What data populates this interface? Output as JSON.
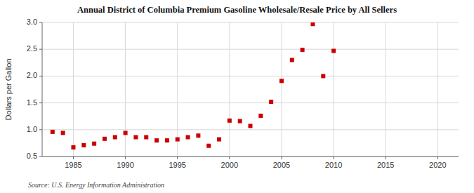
{
  "chart_data": {
    "type": "scatter",
    "title": "Annual District of Columbia Premium Gasoline Wholesale/Resale Price by All Sellers",
    "y_label": "Dollars per Gallon",
    "annotations": [
      "Source: U.S. Energy Information Administration"
    ],
    "x": [
      1983,
      1984,
      1985,
      1986,
      1987,
      1988,
      1989,
      1990,
      1991,
      1992,
      1993,
      1994,
      1995,
      1996,
      1997,
      1998,
      1999,
      2000,
      2001,
      2002,
      2003,
      2004,
      2005,
      2006,
      2007,
      2008,
      2009,
      2010
    ],
    "values": [
      0.96,
      0.94,
      0.67,
      0.71,
      0.74,
      0.83,
      0.86,
      0.94,
      0.86,
      0.86,
      0.8,
      0.8,
      0.82,
      0.86,
      0.89,
      0.7,
      0.82,
      1.17,
      1.16,
      1.07,
      1.26,
      1.52,
      1.91,
      2.3,
      2.49,
      2.97,
      2.0,
      2.47
    ],
    "color": "#cc0000",
    "marker": "square",
    "xlim": [
      1982,
      2022
    ],
    "ylim": [
      0.5,
      3.0
    ],
    "xticks": [
      1985,
      1990,
      1995,
      2000,
      2005,
      2010,
      2015,
      2020
    ],
    "yticks": [
      0.5,
      {
        "value": 1,
        "label": "1.0"
      },
      1.5,
      {
        "value": 2,
        "label": "2.0"
      },
      2.5,
      {
        "value": 3,
        "label": "3.0"
      }
    ],
    "grid": true
  }
}
